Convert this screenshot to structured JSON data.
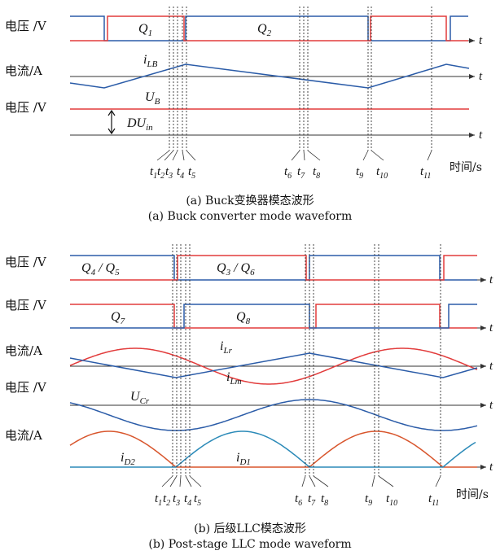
{
  "panel_a": {
    "rows": [
      {
        "label": "电压 /V",
        "signals": [
          {
            "name": "Q",
            "sub": "1"
          },
          {
            "name": "Q",
            "sub": "2"
          }
        ]
      },
      {
        "label": "电流/A",
        "signals": [
          {
            "name": "i",
            "sub": "LB"
          }
        ]
      },
      {
        "label": "电压 /V",
        "signals": [
          {
            "name": "U",
            "sub": "B"
          },
          {
            "name": "DU",
            "sub": "in"
          }
        ]
      }
    ],
    "t_labels": [
      "1",
      "2",
      "3",
      "4",
      "5",
      "6",
      "7",
      "8",
      "9",
      "10",
      "11"
    ],
    "time_label": "时间/s",
    "caption_zh": "(a) Buck变换器模态波形",
    "caption_en": "(a) Buck converter mode waveform"
  },
  "panel_b": {
    "rows": [
      {
        "label": "电压 /V",
        "signals": [
          {
            "name": "Q",
            "sub": "4",
            "sep": " / ",
            "name2": "Q",
            "sub2": "5"
          },
          {
            "name": "Q",
            "sub": "3",
            "sep": " / ",
            "name2": "Q",
            "sub2": "6"
          }
        ]
      },
      {
        "label": "电压 /V",
        "signals": [
          {
            "name": "Q",
            "sub": "7"
          },
          {
            "name": "Q",
            "sub": "8"
          }
        ]
      },
      {
        "label": "电流/A",
        "signals": [
          {
            "name": "i",
            "sub": "Lr"
          },
          {
            "name": "i",
            "sub": "Lm"
          }
        ]
      },
      {
        "label": "电压 /V",
        "signals": [
          {
            "name": "U",
            "sub": "Cr"
          }
        ]
      },
      {
        "label": "电流/A",
        "signals": [
          {
            "name": "i",
            "sub": "D2"
          },
          {
            "name": "i",
            "sub": "D1"
          }
        ]
      }
    ],
    "t_labels": [
      "1",
      "2",
      "3",
      "4",
      "5",
      "6",
      "7",
      "8",
      "9",
      "10",
      "11"
    ],
    "time_label": "时间/s",
    "caption_zh": "(b) 后级LLC模态波形",
    "caption_en": "(b) Post-stage LLC mode waveform"
  },
  "axis_symbol": "t",
  "colors": {
    "blue": "#2b5ca8",
    "red": "#e23c3c",
    "orange": "#d8552c",
    "axis": "#333333"
  }
}
